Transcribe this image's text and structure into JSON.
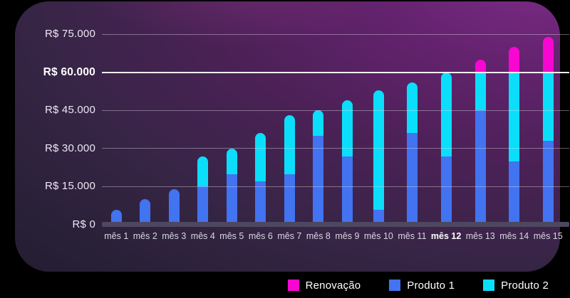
{
  "page": {
    "background": "#000000",
    "card_accent_top_right": "#7c2b87",
    "card_base": "#241d31"
  },
  "chart_data": {
    "type": "bar",
    "stacked": true,
    "title": "",
    "xlabel": "",
    "ylabel": "",
    "currency": "R$",
    "ylim": [
      0,
      75000
    ],
    "grid": true,
    "goal_value": 60000,
    "goal_line_color": "#ffffff",
    "legend_position": "bottom-right",
    "categories": [
      "mês 1",
      "mês 2",
      "mês 3",
      "mês 4",
      "mês 5",
      "mês 6",
      "mês 7",
      "mês 8",
      "mês 9",
      "mês 10",
      "mês 11",
      "mês 12",
      "mês 13",
      "mês 14",
      "mês 15"
    ],
    "bold_category": "mês 12",
    "yticks": [
      {
        "value": 0,
        "label": "R$ 0",
        "bold": false
      },
      {
        "value": 15000,
        "label": "R$ 15.000",
        "bold": false
      },
      {
        "value": 30000,
        "label": "R$ 30.000",
        "bold": false
      },
      {
        "value": 45000,
        "label": "R$ 45.000",
        "bold": false
      },
      {
        "value": 60000,
        "label": "R$ 60.000",
        "bold": true
      },
      {
        "value": 75000,
        "label": "R$ 75.000",
        "bold": false
      }
    ],
    "series": [
      {
        "name": "Produto 1",
        "color": "#4273f0",
        "values": [
          6000,
          10000,
          14000,
          15000,
          20000,
          17000,
          20000,
          35000,
          27000,
          6000,
          36000,
          27000,
          45000,
          25000,
          33000
        ]
      },
      {
        "name": "Produto 2",
        "color": "#0bdefb",
        "values": [
          0,
          0,
          0,
          12000,
          10000,
          19000,
          23000,
          10000,
          22000,
          47000,
          20000,
          33000,
          15000,
          35000,
          27000
        ]
      },
      {
        "name": "Renovação",
        "color": "#f907d2",
        "values": [
          0,
          0,
          0,
          0,
          0,
          0,
          0,
          0,
          0,
          0,
          0,
          0,
          5000,
          10000,
          14000
        ]
      }
    ],
    "totals": [
      6000,
      10000,
      14000,
      27000,
      30000,
      36000,
      43000,
      45000,
      49000,
      53000,
      56000,
      60000,
      65000,
      70000,
      74000
    ]
  },
  "legend": {
    "items": [
      {
        "label": "Renovação",
        "color": "#f907d2"
      },
      {
        "label": "Produto 1",
        "color": "#4273f0"
      },
      {
        "label": "Produto 2",
        "color": "#0bdefb"
      }
    ]
  },
  "logo": {
    "name": "double-chevron-logo",
    "outline_color": "#2f6df2",
    "fill_top": "#3a3f9c",
    "fill_bottom": "#44227c"
  }
}
